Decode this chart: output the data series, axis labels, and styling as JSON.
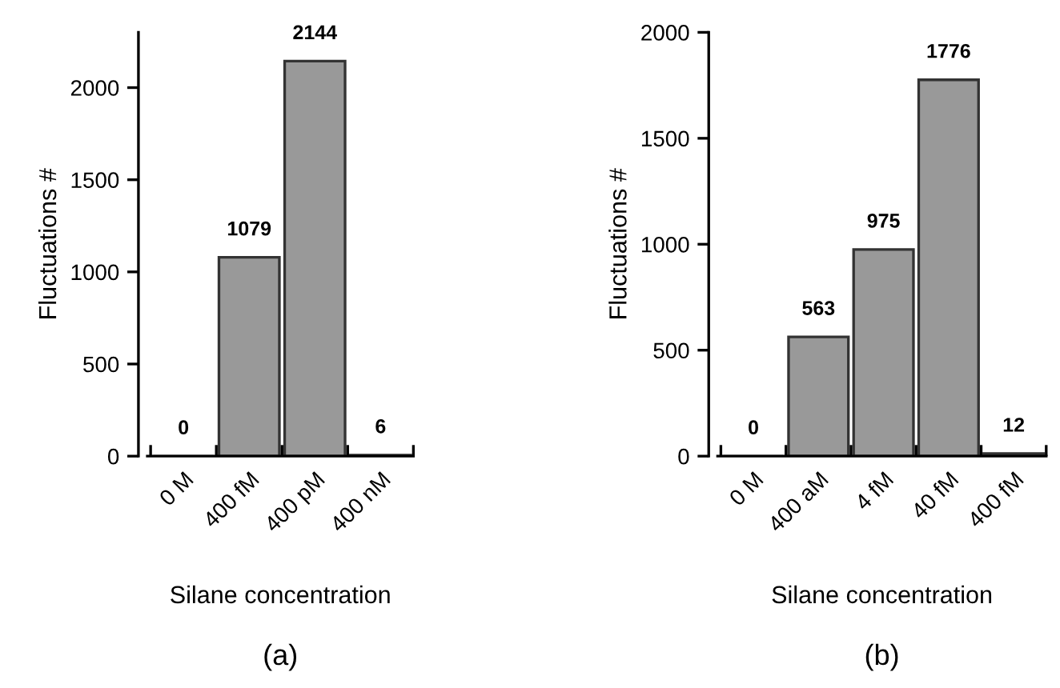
{
  "chart_data": [
    {
      "type": "bar",
      "categories": [
        "0 M",
        "400 fM",
        "400 pM",
        "400 nM"
      ],
      "values": [
        0,
        1079,
        2144,
        6
      ],
      "color": "#999999",
      "xlabel": "Silane concentration",
      "ylabel": "Fluctuations #",
      "ylim": [
        0,
        2300
      ],
      "yticks": [
        0,
        500,
        1000,
        1500,
        2000
      ],
      "data_labels": true,
      "grid": false,
      "annotations": [
        "(a)"
      ]
    },
    {
      "type": "bar",
      "categories": [
        "0 M",
        "400 aM",
        "4 fM",
        "40 fM",
        "400 fM"
      ],
      "values": [
        0,
        563,
        975,
        1776,
        12
      ],
      "color": "#999999",
      "xlabel": "Silane concentration",
      "ylabel": "Fluctuations #",
      "ylim": [
        0,
        2000
      ],
      "yticks": [
        0,
        500,
        1000,
        1500,
        2000
      ],
      "data_labels": true,
      "grid": false,
      "annotations": [
        "(b)"
      ]
    }
  ]
}
